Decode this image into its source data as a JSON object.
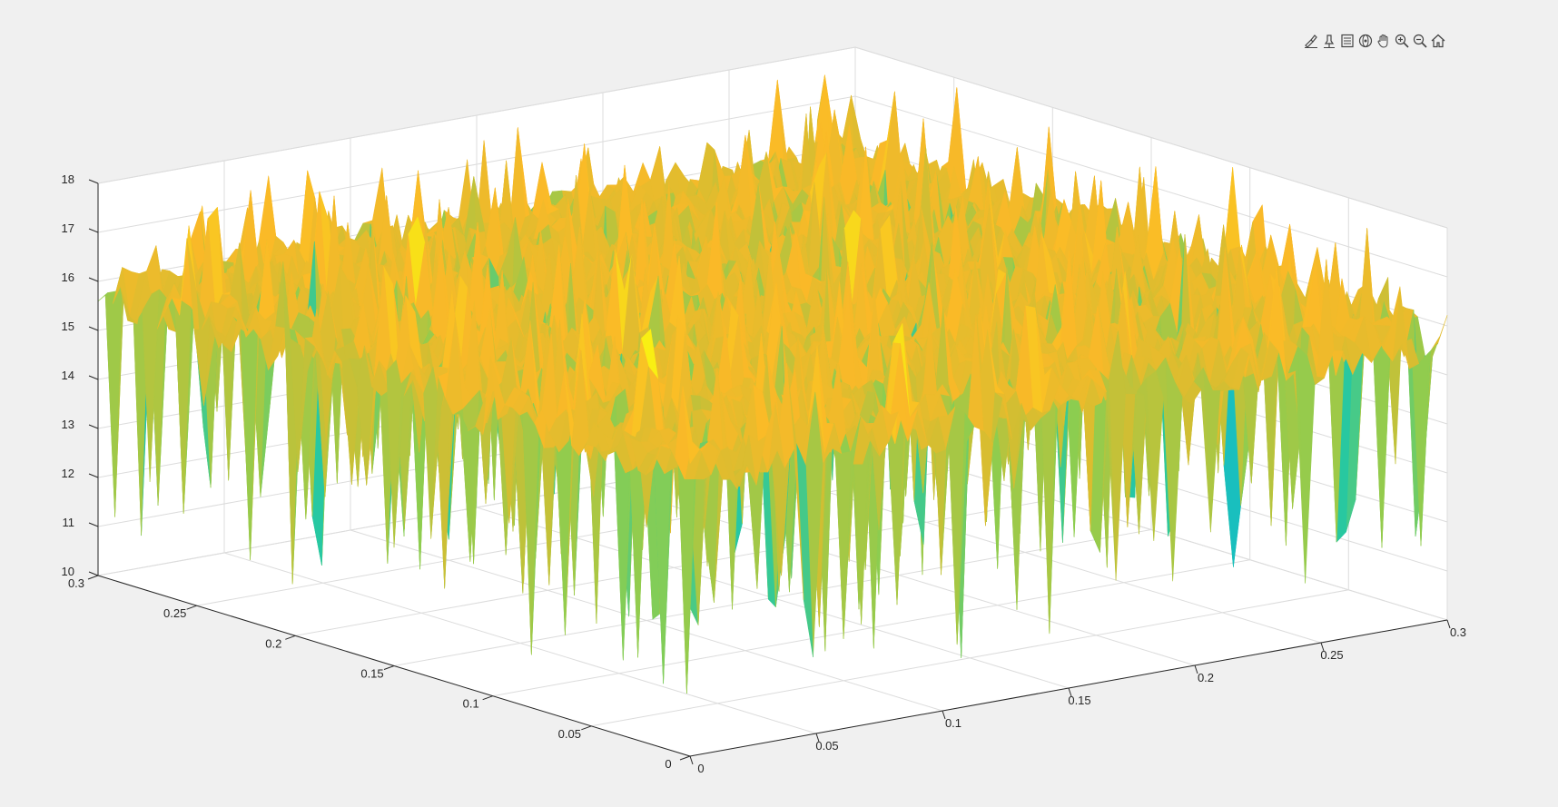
{
  "toolbar": {
    "tools": [
      {
        "name": "brush-icon"
      },
      {
        "name": "data-tips-icon"
      },
      {
        "name": "legend-icon"
      },
      {
        "name": "rotate-3d-icon"
      },
      {
        "name": "pan-icon"
      },
      {
        "name": "zoom-in-icon"
      },
      {
        "name": "zoom-out-icon"
      },
      {
        "name": "home-icon"
      }
    ]
  },
  "chart_data": {
    "type": "surface",
    "title": "",
    "xlabel": "",
    "ylabel": "",
    "zlabel": "",
    "xlim": [
      0,
      0.3
    ],
    "ylim": [
      0,
      0.3
    ],
    "zlim": [
      10,
      18
    ],
    "x_ticks": [
      "0",
      "0.05",
      "0.1",
      "0.15",
      "0.2",
      "0.25",
      "0.3"
    ],
    "y_ticks": [
      "0",
      "0.05",
      "0.1",
      "0.15",
      "0.2",
      "0.25",
      "0.3"
    ],
    "z_ticks": [
      "10",
      "11",
      "12",
      "13",
      "14",
      "15",
      "16",
      "17",
      "18"
    ],
    "grid": true,
    "colormap": "parula",
    "surface_mean": 15.8,
    "surface_min": 10.5,
    "surface_max": 17.9,
    "colors": {
      "low": "#3e26a8",
      "mid": "#1fbfb8",
      "high": "#f9fb0e",
      "main": "#f5b423"
    }
  }
}
